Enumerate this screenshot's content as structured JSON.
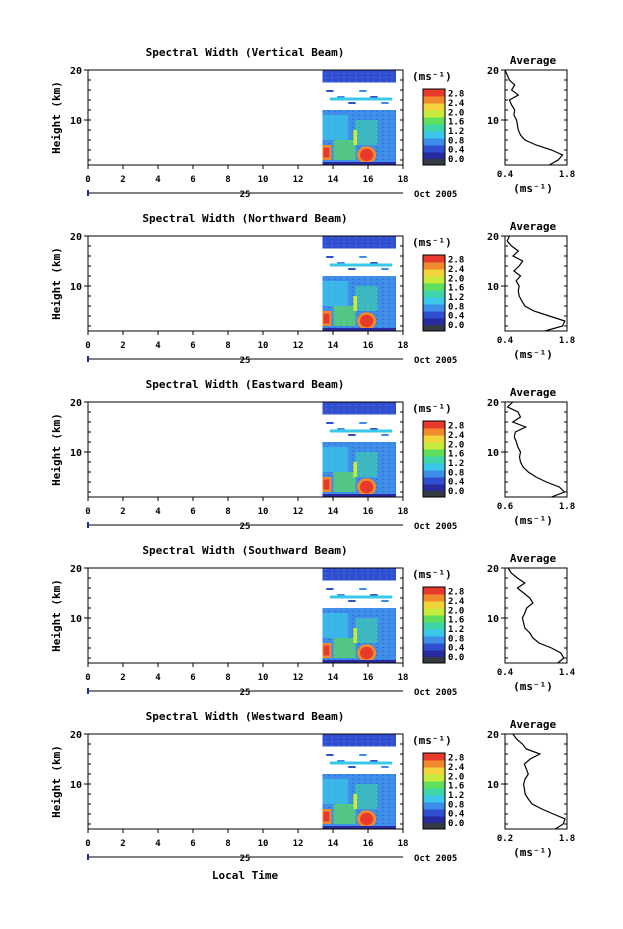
{
  "figure": {
    "xlabel": "Local Time",
    "date_label": "Oct 2005",
    "day_label": "25"
  },
  "colors": {
    "scale": [
      "#2a2aa0",
      "#2f4fd0",
      "#3c8ee8",
      "#39c8ea",
      "#3ed6a8",
      "#5ee05c",
      "#c8ea3c",
      "#f3d33a",
      "#f08a2c",
      "#e83a2c"
    ],
    "low_band": "#333a44",
    "profile_line": "#000000",
    "axis": "#000000",
    "marker": "#1a2aa0"
  },
  "chart_data": [
    {
      "type": "heatmap",
      "title": "Spectral Width (Vertical Beam)",
      "ylabel": "Height (km)",
      "xlim": [
        0,
        18
      ],
      "ylim": [
        1,
        20
      ],
      "x_ticks": [
        0,
        2,
        4,
        6,
        8,
        10,
        12,
        14,
        16,
        18
      ],
      "y_ticks": [
        10,
        20
      ],
      "data_x_start": 13.4,
      "data_x_end": 17.6,
      "colorbar": {
        "unit": "(ms⁻¹)",
        "ticks": [
          "0.0",
          "0.4",
          "0.8",
          "1.2",
          "1.6",
          "2.0",
          "2.4",
          "2.8"
        ],
        "range": [
          0,
          3.0
        ]
      },
      "avg_title": "Average",
      "avg_unit": "(ms⁻¹)",
      "avg_xlim": [
        0.4,
        1.8
      ],
      "avg_xticks": [
        "0.4",
        "1.8"
      ],
      "profile": [
        [
          1.4,
          1
        ],
        [
          1.6,
          2
        ],
        [
          1.7,
          3
        ],
        [
          1.45,
          4
        ],
        [
          1.1,
          5
        ],
        [
          0.85,
          6
        ],
        [
          0.75,
          7
        ],
        [
          0.7,
          8
        ],
        [
          0.68,
          9
        ],
        [
          0.66,
          10
        ],
        [
          0.6,
          11
        ],
        [
          0.62,
          12
        ],
        [
          0.55,
          13
        ],
        [
          0.5,
          14
        ],
        [
          0.7,
          15
        ],
        [
          0.55,
          16
        ],
        [
          0.62,
          17
        ],
        [
          0.5,
          18
        ],
        [
          0.45,
          19
        ],
        [
          0.4,
          20
        ]
      ]
    },
    {
      "type": "heatmap",
      "title": "Spectral Width (Northward Beam)",
      "ylabel": "Height (km)",
      "xlim": [
        0,
        18
      ],
      "ylim": [
        1,
        20
      ],
      "x_ticks": [
        0,
        2,
        4,
        6,
        8,
        10,
        12,
        14,
        16,
        18
      ],
      "y_ticks": [
        10,
        20
      ],
      "data_x_start": 13.4,
      "data_x_end": 17.6,
      "colorbar": {
        "unit": "(ms⁻¹)",
        "ticks": [
          "0.0",
          "0.4",
          "0.8",
          "1.2",
          "1.6",
          "2.0",
          "2.4",
          "2.8"
        ],
        "range": [
          0,
          3.0
        ]
      },
      "avg_title": "Average",
      "avg_unit": "(ms⁻¹)",
      "avg_xlim": [
        0.4,
        1.8
      ],
      "avg_xticks": [
        "0.4",
        "1.8"
      ],
      "profile": [
        [
          1.3,
          1
        ],
        [
          1.7,
          2
        ],
        [
          1.75,
          3
        ],
        [
          1.4,
          4
        ],
        [
          1.05,
          5
        ],
        [
          0.85,
          6
        ],
        [
          0.78,
          7
        ],
        [
          0.72,
          8
        ],
        [
          0.7,
          9
        ],
        [
          0.72,
          10
        ],
        [
          0.65,
          11
        ],
        [
          0.75,
          12
        ],
        [
          0.6,
          13
        ],
        [
          0.72,
          14
        ],
        [
          0.8,
          15
        ],
        [
          0.58,
          16
        ],
        [
          0.7,
          17
        ],
        [
          0.55,
          18
        ],
        [
          0.45,
          19
        ],
        [
          0.5,
          20
        ]
      ]
    },
    {
      "type": "heatmap",
      "title": "Spectral Width (Eastward Beam)",
      "ylabel": "Height (km)",
      "xlim": [
        0,
        18
      ],
      "ylim": [
        1,
        20
      ],
      "x_ticks": [
        0,
        2,
        4,
        6,
        8,
        10,
        12,
        14,
        16,
        18
      ],
      "y_ticks": [
        10,
        20
      ],
      "data_x_start": 13.4,
      "data_x_end": 17.6,
      "colorbar": {
        "unit": "(ms⁻¹)",
        "ticks": [
          "0.0",
          "0.4",
          "0.8",
          "1.2",
          "1.6",
          "2.0",
          "2.4",
          "2.8"
        ],
        "range": [
          0,
          3.0
        ]
      },
      "avg_title": "Average",
      "avg_unit": "(ms⁻¹)",
      "avg_xlim": [
        0.6,
        1.8
      ],
      "avg_xticks": [
        "0.6",
        "1.8"
      ],
      "profile": [
        [
          1.5,
          1
        ],
        [
          1.75,
          2
        ],
        [
          1.65,
          3
        ],
        [
          1.4,
          4
        ],
        [
          1.2,
          5
        ],
        [
          1.05,
          6
        ],
        [
          0.95,
          7
        ],
        [
          0.9,
          8
        ],
        [
          0.88,
          9
        ],
        [
          0.9,
          10
        ],
        [
          0.85,
          11
        ],
        [
          0.82,
          12
        ],
        [
          0.78,
          13
        ],
        [
          0.8,
          14
        ],
        [
          1.0,
          15
        ],
        [
          0.75,
          16
        ],
        [
          0.9,
          17
        ],
        [
          0.85,
          18
        ],
        [
          0.65,
          19
        ],
        [
          0.75,
          20
        ]
      ]
    },
    {
      "type": "heatmap",
      "title": "Spectral Width (Southward Beam)",
      "ylabel": "Height (km)",
      "xlim": [
        0,
        18
      ],
      "ylim": [
        1,
        20
      ],
      "x_ticks": [
        0,
        2,
        4,
        6,
        8,
        10,
        12,
        14,
        16,
        18
      ],
      "y_ticks": [
        10,
        20
      ],
      "data_x_start": 13.4,
      "data_x_end": 17.6,
      "colorbar": {
        "unit": "(ms⁻¹)",
        "ticks": [
          "0.0",
          "0.4",
          "0.8",
          "1.2",
          "1.6",
          "2.0",
          "2.4",
          "2.8"
        ],
        "range": [
          0,
          3.0
        ]
      },
      "avg_title": "Average",
      "avg_unit": "(ms⁻¹)",
      "avg_xlim": [
        0.4,
        1.4
      ],
      "avg_xticks": [
        "0.4",
        "1.4"
      ],
      "profile": [
        [
          1.25,
          1
        ],
        [
          1.35,
          2
        ],
        [
          1.3,
          3
        ],
        [
          1.15,
          4
        ],
        [
          0.95,
          5
        ],
        [
          0.85,
          6
        ],
        [
          0.8,
          7
        ],
        [
          0.72,
          8
        ],
        [
          0.7,
          9
        ],
        [
          0.68,
          10
        ],
        [
          0.72,
          11
        ],
        [
          0.75,
          12
        ],
        [
          0.85,
          13
        ],
        [
          0.8,
          14
        ],
        [
          0.7,
          15
        ],
        [
          0.6,
          16
        ],
        [
          0.72,
          17
        ],
        [
          0.6,
          18
        ],
        [
          0.5,
          19
        ],
        [
          0.45,
          20
        ]
      ]
    },
    {
      "type": "heatmap",
      "title": "Spectral Width (Westward Beam)",
      "ylabel": "Height (km)",
      "xlim": [
        0,
        18
      ],
      "ylim": [
        1,
        20
      ],
      "x_ticks": [
        0,
        2,
        4,
        6,
        8,
        10,
        12,
        14,
        16,
        18
      ],
      "y_ticks": [
        10,
        20
      ],
      "data_x_start": 13.4,
      "data_x_end": 17.6,
      "colorbar": {
        "unit": "(ms⁻¹)",
        "ticks": [
          "0.0",
          "0.4",
          "0.8",
          "1.2",
          "1.6",
          "2.0",
          "2.4",
          "2.8"
        ],
        "range": [
          0,
          3.0
        ]
      },
      "avg_title": "Average",
      "avg_unit": "(ms⁻¹)",
      "avg_xlim": [
        0.2,
        1.8
      ],
      "avg_xticks": [
        "0.2",
        "1.8"
      ],
      "profile": [
        [
          1.5,
          1
        ],
        [
          1.7,
          2
        ],
        [
          1.75,
          3
        ],
        [
          1.45,
          4
        ],
        [
          1.15,
          5
        ],
        [
          0.9,
          6
        ],
        [
          0.8,
          7
        ],
        [
          0.72,
          8
        ],
        [
          0.7,
          9
        ],
        [
          0.68,
          10
        ],
        [
          0.72,
          11
        ],
        [
          0.8,
          12
        ],
        [
          0.75,
          13
        ],
        [
          0.7,
          14
        ],
        [
          0.85,
          15
        ],
        [
          1.1,
          16
        ],
        [
          0.75,
          17
        ],
        [
          0.65,
          18
        ],
        [
          0.5,
          19
        ],
        [
          0.4,
          20
        ]
      ]
    }
  ]
}
